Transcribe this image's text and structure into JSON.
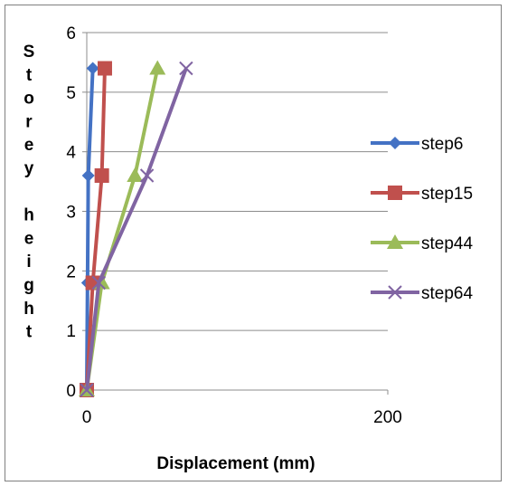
{
  "chart_data": {
    "type": "line",
    "title": "",
    "xlabel": "Displacement (mm)",
    "ylabel": "Storey height",
    "xlim": [
      0,
      200
    ],
    "ylim": [
      0,
      6
    ],
    "x_ticks": [
      0,
      200
    ],
    "y_ticks": [
      0,
      1,
      2,
      3,
      4,
      5,
      6
    ],
    "grid": "horizontal",
    "legend_position": "right",
    "y": [
      0,
      1.8,
      3.6,
      5.4
    ],
    "series": [
      {
        "name": "step6",
        "x": [
          0,
          0.5,
          1.0,
          4.0
        ],
        "color": "#4472C4",
        "marker": "diamond"
      },
      {
        "name": "step15",
        "x": [
          0,
          4.0,
          10.0,
          12.0
        ],
        "color": "#C0504D",
        "marker": "square"
      },
      {
        "name": "step44",
        "x": [
          0,
          10.0,
          32.0,
          47.0
        ],
        "color": "#9BBB59",
        "marker": "triangle"
      },
      {
        "name": "step64",
        "x": [
          0,
          8.0,
          40.0,
          66.0
        ],
        "color": "#8064A2",
        "marker": "x"
      }
    ]
  }
}
